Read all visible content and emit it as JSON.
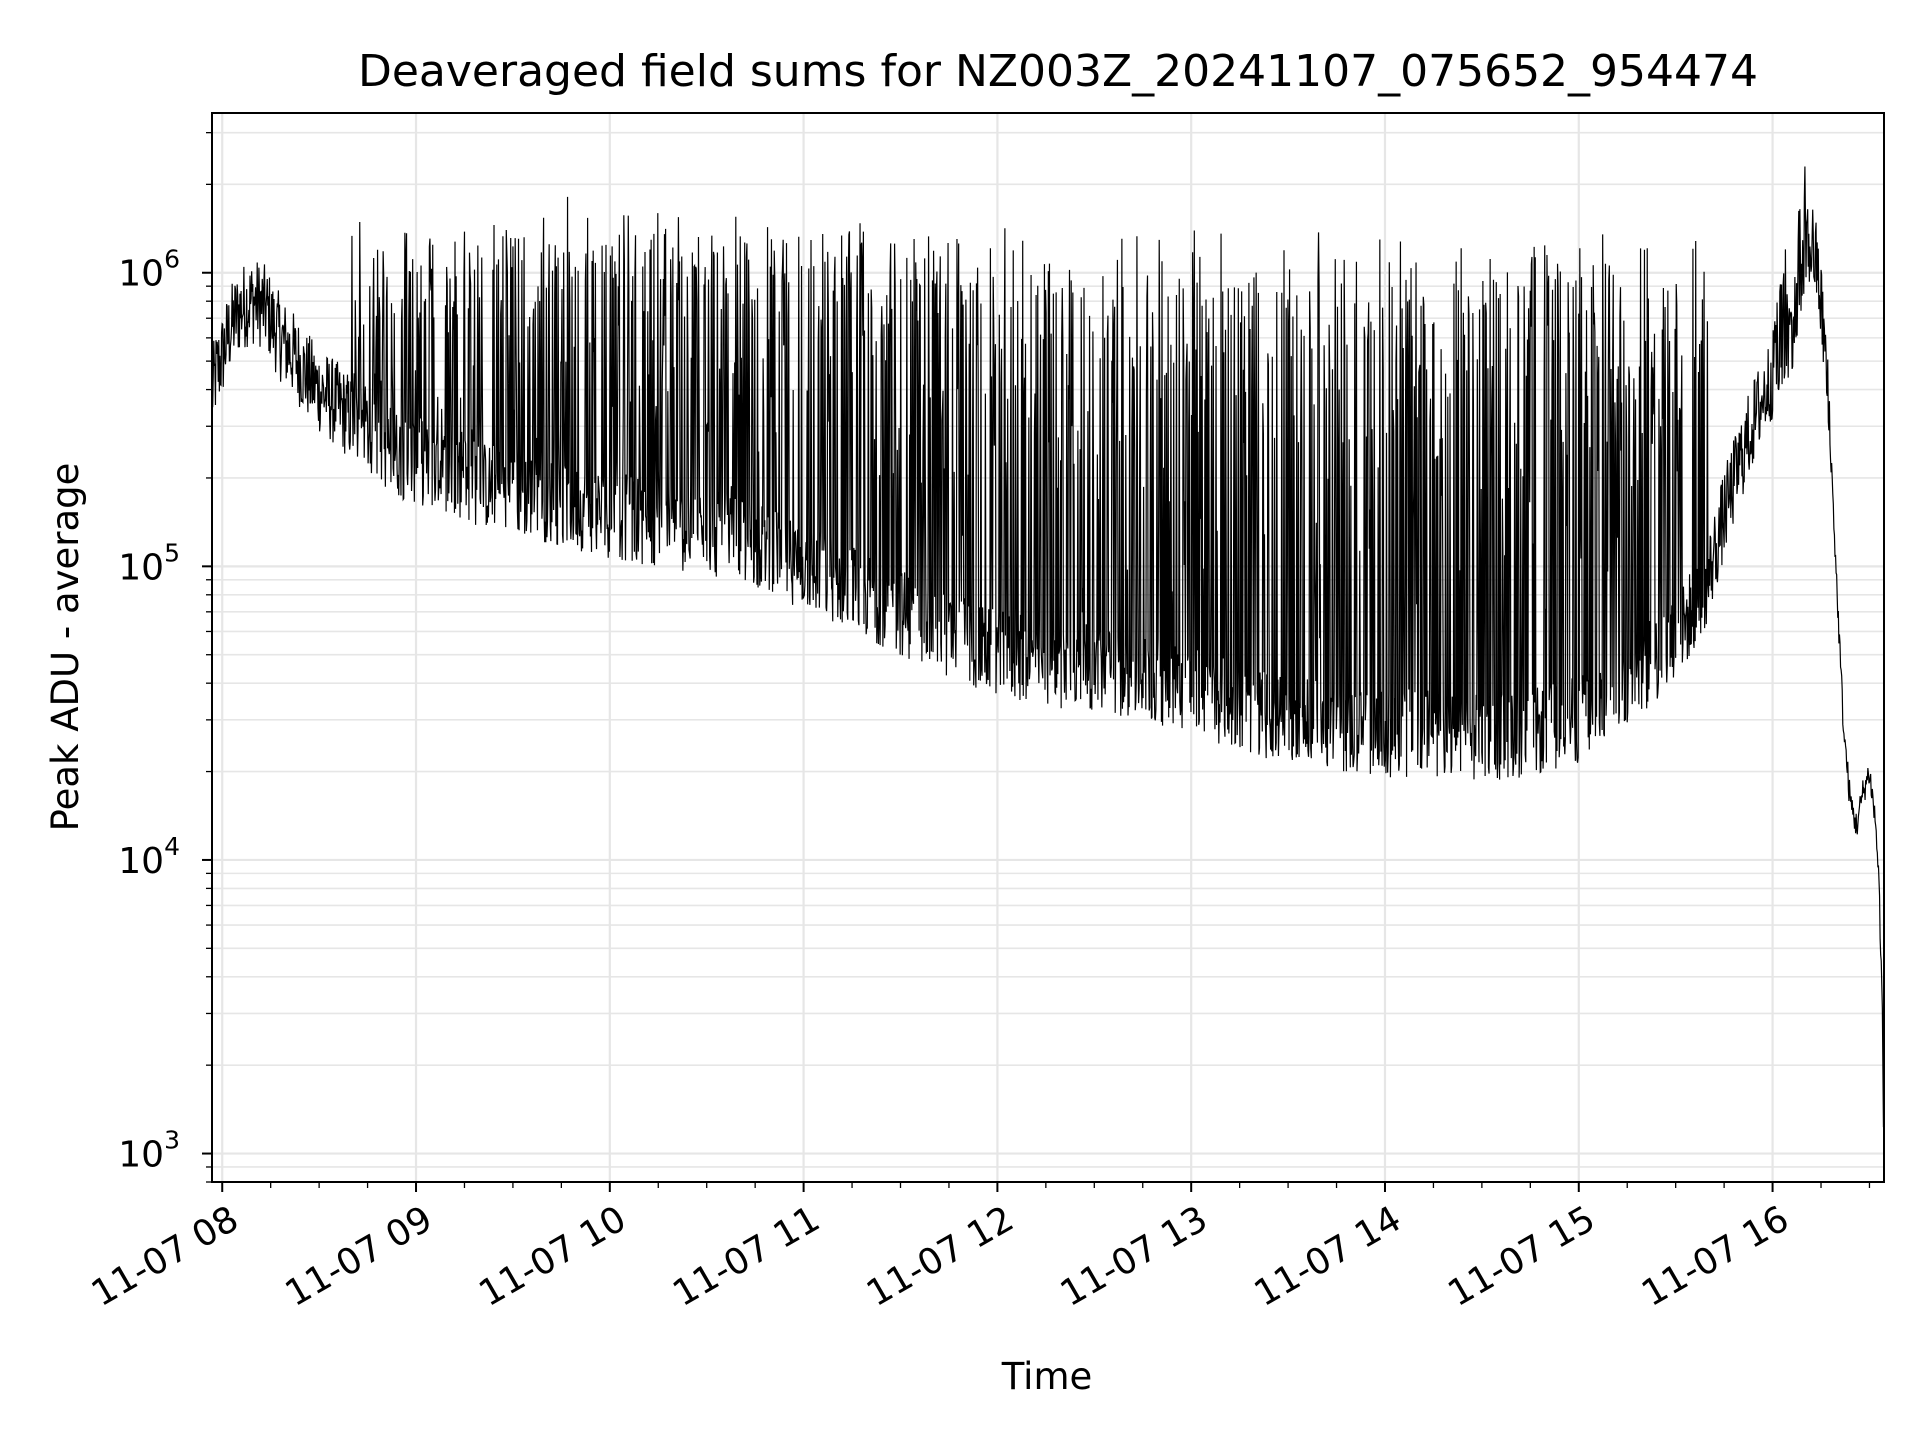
{
  "chart_data": {
    "type": "line",
    "title": "Deaveraged field sums for NZ003Z_20241107_075652_954474",
    "xlabel": "Time",
    "ylabel": "Peak ADU - average",
    "yscale": "log",
    "ylim": [
      800,
      3500000
    ],
    "xlim": [
      "11-07 07:56:50",
      "11-07 16:34:30"
    ],
    "grid": true,
    "line_color": "#000000",
    "grid_color": "#e6e6e6",
    "x_ticks": [
      "11-07 08",
      "11-07 09",
      "11-07 10",
      "11-07 11",
      "11-07 12",
      "11-07 13",
      "11-07 14",
      "11-07 15",
      "11-07 16"
    ],
    "y_ticks": [
      {
        "base": "10",
        "exp": "3",
        "value": 1000
      },
      {
        "base": "10",
        "exp": "4",
        "value": 10000
      },
      {
        "base": "10",
        "exp": "5",
        "value": 100000
      },
      {
        "base": "10",
        "exp": "6",
        "value": 1000000
      }
    ],
    "series": [
      {
        "points": [
          [
            "07:56:52",
            390000
          ],
          [
            "07:58",
            450000
          ],
          [
            "08:00",
            520000
          ],
          [
            "08:02",
            620000
          ],
          [
            "08:04",
            700000
          ],
          [
            "08:06",
            760000
          ],
          [
            "08:08",
            790000
          ],
          [
            "08:10",
            800000
          ],
          [
            "08:12",
            780000
          ],
          [
            "08:14",
            740000
          ],
          [
            "08:16",
            660000
          ],
          [
            "08:18",
            600000
          ],
          [
            "08:20",
            560000
          ],
          [
            "08:23",
            510000
          ],
          [
            "08:26",
            450000
          ],
          [
            "08:30",
            400000
          ],
          [
            "08:35",
            360000
          ],
          [
            "08:40",
            320000
          ],
          [
            "08:45",
            290000
          ],
          [
            "08:50",
            260000
          ],
          [
            "08:55",
            240000
          ],
          [
            "09:00",
            230000
          ],
          [
            "09:10",
            210000
          ],
          [
            "09:20",
            190000
          ],
          [
            "09:30",
            180000
          ],
          [
            "09:40",
            170000
          ],
          [
            "09:50",
            160000
          ],
          [
            "10:00",
            150000
          ],
          [
            "10:15",
            140000
          ],
          [
            "10:30",
            130000
          ],
          [
            "10:45",
            120000
          ],
          [
            "11:00",
            100000
          ],
          [
            "11:15",
            85000
          ],
          [
            "11:30",
            70000
          ],
          [
            "11:45",
            58000
          ],
          [
            "12:00",
            50000
          ],
          [
            "12:15",
            47000
          ],
          [
            "12:30",
            45000
          ],
          [
            "12:45",
            42000
          ],
          [
            "13:00",
            38000
          ],
          [
            "13:15",
            33000
          ],
          [
            "13:30",
            30000
          ],
          [
            "13:45",
            28000
          ],
          [
            "14:00",
            27000
          ],
          [
            "14:15",
            27000
          ],
          [
            "14:30",
            26000
          ],
          [
            "14:45",
            27000
          ],
          [
            "15:00",
            30000
          ],
          [
            "15:15",
            40000
          ],
          [
            "15:30",
            55000
          ],
          [
            "15:40",
            90000
          ],
          [
            "15:45",
            150000
          ],
          [
            "15:50",
            230000
          ],
          [
            "15:55",
            330000
          ],
          [
            "16:00",
            450000
          ],
          [
            "16:05",
            600000
          ],
          [
            "16:08",
            800000
          ],
          [
            "16:10",
            1100000
          ],
          [
            "16:12",
            1300000
          ],
          [
            "16:14",
            1000000
          ],
          [
            "16:16",
            600000
          ],
          [
            "16:18",
            250000
          ],
          [
            "16:20",
            80000
          ],
          [
            "16:22",
            28000
          ],
          [
            "16:24",
            16000
          ],
          [
            "16:26",
            13000
          ],
          [
            "16:28",
            17000
          ],
          [
            "16:30",
            20000
          ],
          [
            "16:32",
            13000
          ],
          [
            "16:33",
            8000
          ],
          [
            "16:34",
            3000
          ],
          [
            "16:34:20",
            1200
          ]
        ],
        "noise": "dense spiky fluctuations"
      }
    ],
    "spikes": {
      "description": "frequent narrow spikes from the baseline up to about 1e6-1.6e6 between roughly 08:40 and 15:40; peak near 2.3e6 around 16:10",
      "upper_envelope": [
        [
          "08:40",
          1300000
        ],
        [
          "10:00",
          1500000
        ],
        [
          "11:00",
          1300000
        ],
        [
          "12:00",
          1200000
        ],
        [
          "13:00",
          1200000
        ],
        [
          "14:00",
          1150000
        ],
        [
          "15:00",
          1100000
        ],
        [
          "15:40",
          1100000
        ]
      ],
      "max_peak": [
        "16:10",
        2300000
      ]
    }
  }
}
